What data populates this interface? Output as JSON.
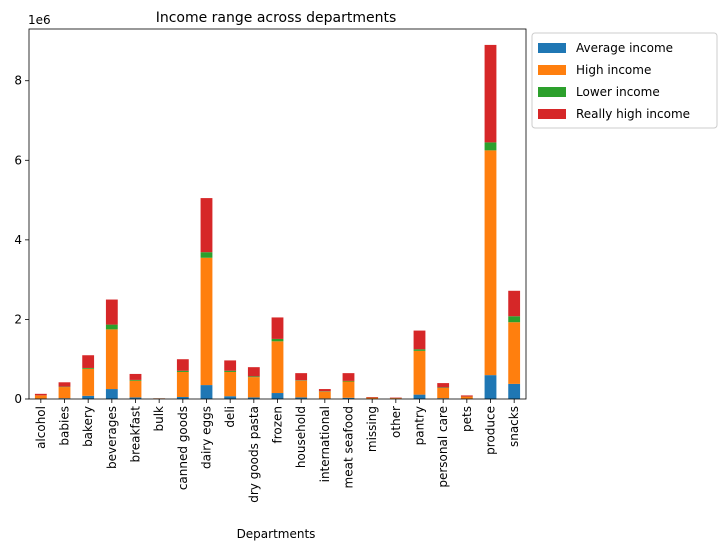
{
  "chart_data": {
    "type": "bar",
    "stacked": true,
    "title": "Income range across departments",
    "xlabel": "Departments",
    "ylabel": "",
    "y_offset_label": "1e6",
    "ylim": [
      0,
      9300000
    ],
    "yticks": [
      0,
      2000000,
      4000000,
      6000000,
      8000000
    ],
    "ytick_labels": [
      "0",
      "2",
      "4",
      "6",
      "8"
    ],
    "legend_position": "outside-top-right",
    "grid": false,
    "categories": [
      "alcohol",
      "babies",
      "bakery",
      "beverages",
      "breakfast",
      "bulk",
      "canned goods",
      "dairy eggs",
      "deli",
      "dry goods pasta",
      "frozen",
      "household",
      "international",
      "meat seafood",
      "missing",
      "other",
      "pantry",
      "personal care",
      "pets",
      "produce",
      "snacks"
    ],
    "series": [
      {
        "name": "Average income",
        "color": "#1f77b4",
        "values": [
          10000,
          20000,
          80000,
          250000,
          40000,
          2000,
          50000,
          350000,
          70000,
          40000,
          150000,
          40000,
          15000,
          30000,
          3000,
          2000,
          110000,
          20000,
          5000,
          600000,
          380000
        ]
      },
      {
        "name": "High income",
        "color": "#ff7f0e",
        "values": [
          80000,
          280000,
          680000,
          1500000,
          420000,
          10000,
          630000,
          3200000,
          610000,
          510000,
          1300000,
          420000,
          170000,
          410000,
          30000,
          20000,
          1100000,
          260000,
          55000,
          5650000,
          1550000
        ]
      },
      {
        "name": "Lower income",
        "color": "#2ca02c",
        "values": [
          2000,
          10000,
          20000,
          120000,
          20000,
          2000,
          30000,
          140000,
          30000,
          20000,
          60000,
          10000,
          10000,
          15000,
          2000,
          1000,
          40000,
          10000,
          2000,
          200000,
          150000
        ]
      },
      {
        "name": "Really high income",
        "color": "#d62728",
        "values": [
          38000,
          110000,
          320000,
          630000,
          150000,
          3000,
          290000,
          1360000,
          260000,
          230000,
          540000,
          180000,
          55000,
          195000,
          15000,
          12000,
          470000,
          110000,
          28000,
          2450000,
          640000
        ]
      }
    ]
  }
}
